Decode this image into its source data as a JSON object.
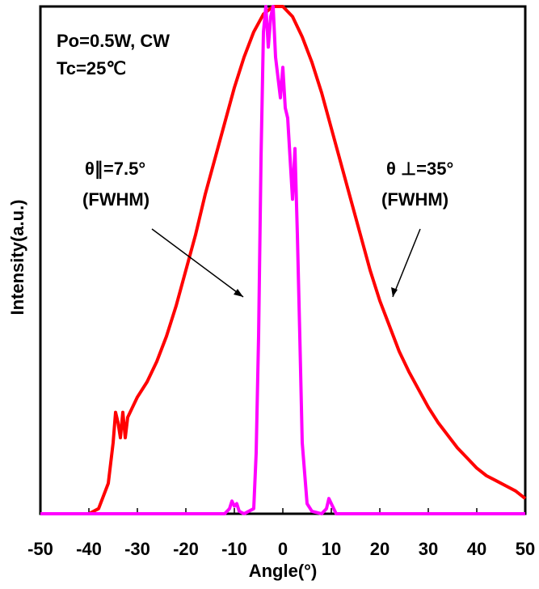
{
  "chart_data": {
    "type": "line",
    "title": "",
    "xlabel": "Angle(°)",
    "ylabel": "Intensity(a.u.)",
    "xlim": [
      -50,
      50
    ],
    "ylim": [
      0,
      1
    ],
    "x_ticks": [
      "-50",
      "-40",
      "-30",
      "-20",
      "-10",
      "0",
      "10",
      "20",
      "30",
      "40",
      "50"
    ],
    "grid": false,
    "legend": "none",
    "series": [
      {
        "color": "#ff0000",
        "x": [
          -50,
          -40,
          -38,
          -36,
          -35,
          -34.5,
          -34,
          -33.5,
          -33,
          -32.5,
          -32,
          -31,
          -30,
          -28,
          -26,
          -24,
          -22,
          -20,
          -18,
          -16,
          -14,
          -12,
          -10,
          -8,
          -6,
          -4,
          -2,
          0,
          2,
          4,
          6,
          8,
          10,
          12,
          14,
          16,
          18,
          20,
          22,
          24,
          26,
          28,
          30,
          32,
          34,
          36,
          38,
          40,
          42,
          44,
          46,
          48,
          50
        ],
        "y": [
          0,
          0,
          0.01,
          0.06,
          0.14,
          0.2,
          0.18,
          0.15,
          0.2,
          0.15,
          0.19,
          0.21,
          0.23,
          0.26,
          0.3,
          0.35,
          0.41,
          0.48,
          0.55,
          0.63,
          0.7,
          0.77,
          0.84,
          0.9,
          0.95,
          0.985,
          1.0,
          1.0,
          0.98,
          0.94,
          0.89,
          0.83,
          0.76,
          0.69,
          0.62,
          0.55,
          0.48,
          0.42,
          0.37,
          0.32,
          0.28,
          0.245,
          0.21,
          0.18,
          0.155,
          0.13,
          0.11,
          0.09,
          0.075,
          0.065,
          0.055,
          0.045,
          0.03
        ]
      },
      {
        "color": "#ff00ff",
        "x": [
          -50,
          -12,
          -11,
          -10.5,
          -10,
          -9.5,
          -9,
          -8,
          -6,
          -5.5,
          -5,
          -4.5,
          -4,
          -3.5,
          -3,
          -2.5,
          -2,
          -1.5,
          -1,
          -0.5,
          0,
          0.5,
          1,
          1.5,
          2,
          2.5,
          3,
          3.5,
          4,
          5,
          6,
          8,
          9,
          9.5,
          10,
          10.5,
          11,
          12,
          15,
          50
        ],
        "y": [
          0,
          0,
          0.01,
          0.025,
          0.015,
          0.02,
          0.005,
          0,
          0.01,
          0.12,
          0.35,
          0.7,
          0.95,
          1.0,
          0.92,
          0.98,
          1.0,
          0.9,
          0.86,
          0.82,
          0.88,
          0.8,
          0.78,
          0.7,
          0.62,
          0.72,
          0.55,
          0.35,
          0.14,
          0.02,
          0.005,
          0,
          0.01,
          0.03,
          0.02,
          0.01,
          0,
          0,
          0,
          0
        ]
      }
    ],
    "annotations": {
      "conditions_line1": "Po=0.5W, CW",
      "conditions_line2": "Tc=25℃",
      "parallel_label": "θ∥=7.5°",
      "parallel_note": "(FWHM)",
      "perp_label": "θ ⊥=35°",
      "perp_note": "(FWHM)"
    }
  }
}
